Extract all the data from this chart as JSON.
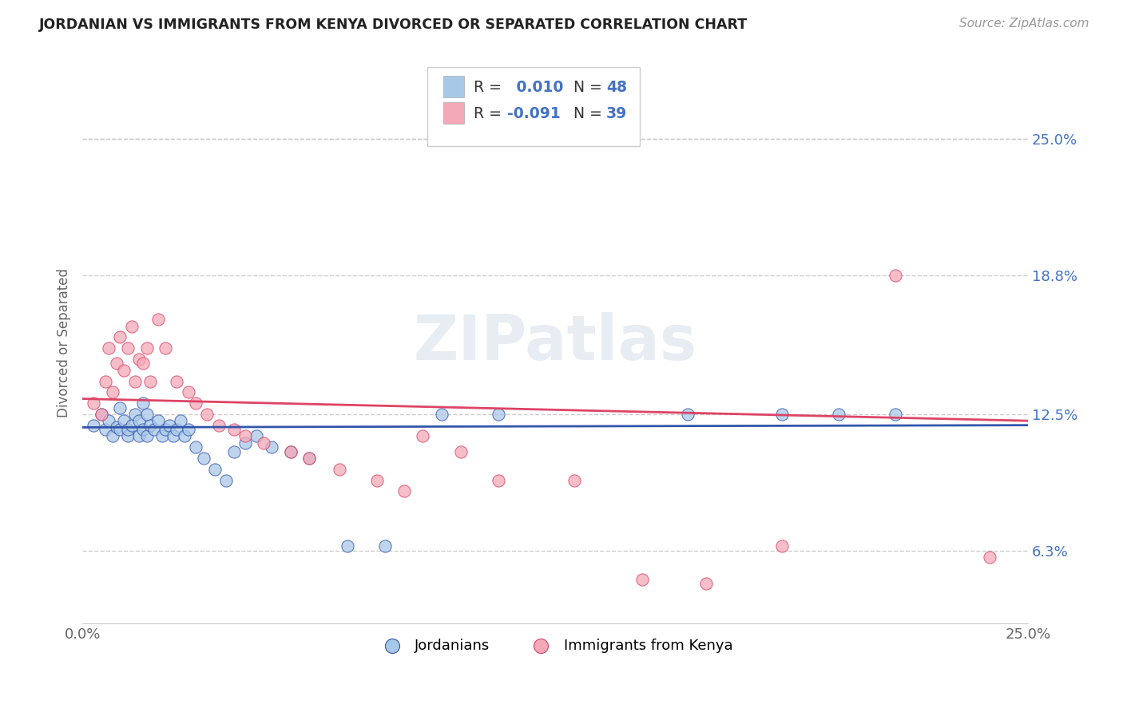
{
  "title": "JORDANIAN VS IMMIGRANTS FROM KENYA DIVORCED OR SEPARATED CORRELATION CHART",
  "source": "Source: ZipAtlas.com",
  "ylabel": "Divorced or Separated",
  "xlim": [
    0.0,
    0.25
  ],
  "ylim": [
    0.03,
    0.285
  ],
  "ytick_labels": [
    "6.3%",
    "12.5%",
    "18.8%",
    "25.0%"
  ],
  "ytick_values": [
    0.063,
    0.125,
    0.188,
    0.25
  ],
  "xtick_labels": [
    "0.0%",
    "25.0%"
  ],
  "xtick_values": [
    0.0,
    0.25
  ],
  "color_blue": "#A8C8E8",
  "color_pink": "#F4A8B8",
  "line_color_blue": "#3355AA",
  "line_color_pink": "#DD4466",
  "watermark": "ZIPatlas",
  "jordanians_x": [
    0.003,
    0.005,
    0.006,
    0.007,
    0.008,
    0.009,
    0.01,
    0.01,
    0.011,
    0.012,
    0.012,
    0.013,
    0.014,
    0.015,
    0.015,
    0.016,
    0.016,
    0.017,
    0.017,
    0.018,
    0.019,
    0.02,
    0.021,
    0.022,
    0.023,
    0.024,
    0.025,
    0.026,
    0.027,
    0.028,
    0.03,
    0.032,
    0.035,
    0.038,
    0.04,
    0.043,
    0.046,
    0.05,
    0.055,
    0.06,
    0.07,
    0.08,
    0.095,
    0.11,
    0.16,
    0.185,
    0.2,
    0.215
  ],
  "jordanians_y": [
    0.12,
    0.125,
    0.118,
    0.122,
    0.115,
    0.119,
    0.128,
    0.118,
    0.122,
    0.115,
    0.118,
    0.12,
    0.125,
    0.115,
    0.122,
    0.13,
    0.118,
    0.125,
    0.115,
    0.12,
    0.118,
    0.122,
    0.115,
    0.118,
    0.12,
    0.115,
    0.118,
    0.122,
    0.115,
    0.118,
    0.11,
    0.105,
    0.1,
    0.095,
    0.108,
    0.112,
    0.115,
    0.11,
    0.108,
    0.105,
    0.065,
    0.065,
    0.125,
    0.125,
    0.125,
    0.125,
    0.125,
    0.125
  ],
  "kenya_x": [
    0.003,
    0.005,
    0.006,
    0.007,
    0.008,
    0.009,
    0.01,
    0.011,
    0.012,
    0.013,
    0.014,
    0.015,
    0.016,
    0.017,
    0.018,
    0.02,
    0.022,
    0.025,
    0.028,
    0.03,
    0.033,
    0.036,
    0.04,
    0.043,
    0.048,
    0.055,
    0.06,
    0.068,
    0.078,
    0.085,
    0.09,
    0.1,
    0.11,
    0.13,
    0.148,
    0.165,
    0.185,
    0.215,
    0.24
  ],
  "kenya_y": [
    0.13,
    0.125,
    0.14,
    0.155,
    0.135,
    0.148,
    0.16,
    0.145,
    0.155,
    0.165,
    0.14,
    0.15,
    0.148,
    0.155,
    0.14,
    0.168,
    0.155,
    0.14,
    0.135,
    0.13,
    0.125,
    0.12,
    0.118,
    0.115,
    0.112,
    0.108,
    0.105,
    0.1,
    0.095,
    0.09,
    0.115,
    0.108,
    0.095,
    0.095,
    0.05,
    0.048,
    0.065,
    0.188,
    0.06
  ],
  "grid_color": "#CCCCCC",
  "background_color": "#FFFFFF"
}
